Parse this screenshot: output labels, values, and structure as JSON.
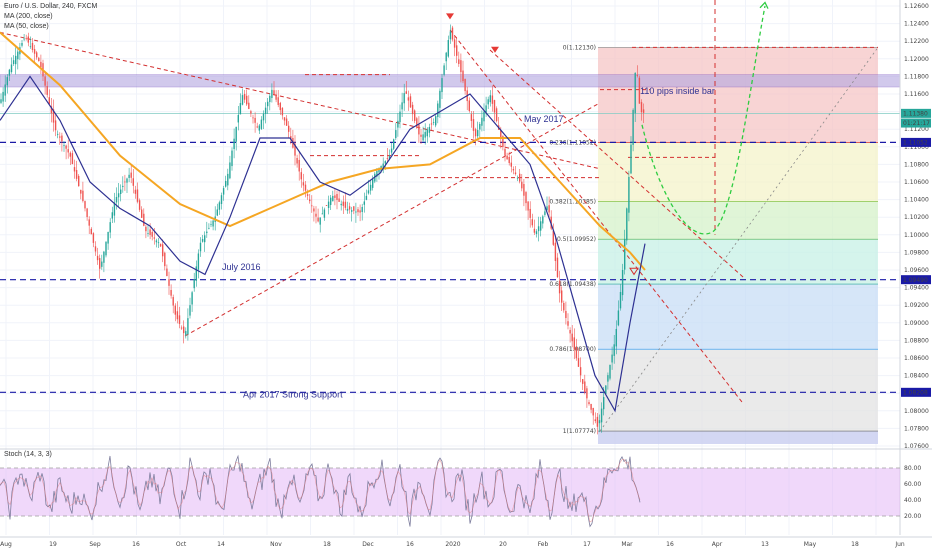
{
  "legend": {
    "symbol": "Euro / U.S. Dollar, 240, FXCM",
    "ma200": "MA (200, close)",
    "ma50": "MA (50, close)"
  },
  "stoch": {
    "label": "Stoch (14, 3, 3)",
    "levels": [
      80,
      60,
      40,
      20
    ],
    "level_labels": [
      "80.00",
      "60.00",
      "40.00",
      "20.00"
    ]
  },
  "colors": {
    "up": "#26a69a",
    "down": "#ef5350",
    "ma200": "#f5a623",
    "ma50": "#2e3192",
    "level_dashed": "#1a1aa6",
    "dashed_red": "#d32f2f",
    "projection": "#2ecc40",
    "resistance_band": "#b3a6e0",
    "stoch_fill": "#e3b8f5",
    "stoch_line": "#7e7e9e"
  },
  "chart_data": {
    "type": "line",
    "title": "Euro / U.S. Dollar, 240, FXCM",
    "ylim": [
      1.076,
      1.126
    ],
    "y_ticks": [
      1.076,
      1.078,
      1.08,
      1.082,
      1.084,
      1.086,
      1.088,
      1.09,
      1.092,
      1.094,
      1.096,
      1.098,
      1.1,
      1.102,
      1.104,
      1.106,
      1.108,
      1.11,
      1.112,
      1.114,
      1.116,
      1.118,
      1.12,
      1.122,
      1.124,
      1.126
    ],
    "y_tick_labels": [
      "1.07600",
      "1.07800",
      "1.08000",
      "1.08200",
      "1.08400",
      "1.08600",
      "1.08800",
      "1.09000",
      "1.09200",
      "1.09400",
      "1.09600",
      "1.09800",
      "1.10000",
      "1.10200",
      "1.10400",
      "1.10600",
      "1.10800",
      "1.11000",
      "1.11200",
      "1.11400",
      "1.11600",
      "1.11800",
      "1.12000",
      "1.12200",
      "1.12400",
      "1.12600"
    ],
    "x_labels": [
      "Aug",
      "19",
      "Sep",
      "16",
      "Oct",
      "14",
      "Nov",
      "18",
      "Dec",
      "16",
      "2020",
      "20",
      "Feb",
      "17",
      "Mar",
      "16",
      "Apr",
      "13",
      "May",
      "18",
      "Jun"
    ],
    "price_path": [
      [
        0,
        1.115
      ],
      [
        10,
        1.119
      ],
      [
        25,
        1.1225
      ],
      [
        40,
        1.1195
      ],
      [
        55,
        1.112
      ],
      [
        70,
        1.109
      ],
      [
        85,
        1.103
      ],
      [
        100,
        1.096
      ],
      [
        115,
        1.104
      ],
      [
        130,
        1.107
      ],
      [
        145,
        1.1005
      ],
      [
        160,
        1.099
      ],
      [
        175,
        1.091
      ],
      [
        185,
        1.0885
      ],
      [
        200,
        1.099
      ],
      [
        215,
        1.102
      ],
      [
        228,
        1.107
      ],
      [
        242,
        1.116
      ],
      [
        258,
        1.112
      ],
      [
        272,
        1.1165
      ],
      [
        288,
        1.112
      ],
      [
        302,
        1.106
      ],
      [
        318,
        1.1015
      ],
      [
        332,
        1.1045
      ],
      [
        346,
        1.103
      ],
      [
        360,
        1.1025
      ],
      [
        375,
        1.107
      ],
      [
        390,
        1.109
      ],
      [
        405,
        1.1165
      ],
      [
        420,
        1.111
      ],
      [
        435,
        1.113
      ],
      [
        450,
        1.1233
      ],
      [
        462,
        1.118
      ],
      [
        475,
        1.111
      ],
      [
        490,
        1.116
      ],
      [
        505,
        1.109
      ],
      [
        520,
        1.106
      ],
      [
        535,
        1.1
      ],
      [
        548,
        1.1035
      ],
      [
        560,
        1.093
      ],
      [
        572,
        1.088
      ],
      [
        585,
        1.082
      ],
      [
        598,
        1.078
      ],
      [
        606,
        1.083
      ],
      [
        615,
        1.088
      ],
      [
        622,
        1.095
      ],
      [
        628,
        1.105
      ],
      [
        632,
        1.112
      ],
      [
        636,
        1.12
      ],
      [
        640,
        1.114
      ],
      [
        645,
        1.1138
      ]
    ],
    "ma50_path": [
      [
        0,
        1.113
      ],
      [
        30,
        1.118
      ],
      [
        60,
        1.113
      ],
      [
        90,
        1.106
      ],
      [
        120,
        1.103
      ],
      [
        150,
        1.101
      ],
      [
        180,
        1.097
      ],
      [
        205,
        1.0955
      ],
      [
        230,
        1.102
      ],
      [
        260,
        1.111
      ],
      [
        290,
        1.111
      ],
      [
        320,
        1.106
      ],
      [
        350,
        1.1045
      ],
      [
        380,
        1.107
      ],
      [
        410,
        1.112
      ],
      [
        440,
        1.114
      ],
      [
        470,
        1.116
      ],
      [
        500,
        1.112
      ],
      [
        530,
        1.108
      ],
      [
        555,
        1.1
      ],
      [
        575,
        1.092
      ],
      [
        595,
        1.084
      ],
      [
        615,
        1.08
      ],
      [
        630,
        1.09
      ],
      [
        645,
        1.099
      ]
    ],
    "ma200_path": [
      [
        0,
        1.123
      ],
      [
        60,
        1.117
      ],
      [
        120,
        1.109
      ],
      [
        180,
        1.1035
      ],
      [
        230,
        1.101
      ],
      [
        280,
        1.1035
      ],
      [
        330,
        1.106
      ],
      [
        380,
        1.1075
      ],
      [
        430,
        1.108
      ],
      [
        480,
        1.111
      ],
      [
        520,
        1.111
      ],
      [
        560,
        1.106
      ],
      [
        600,
        1.101
      ],
      [
        630,
        1.098
      ],
      [
        645,
        1.096
      ]
    ],
    "levels": [
      {
        "price": 1.1105,
        "label": "1.11052"
      },
      {
        "price": 1.0949,
        "label": "1.09490"
      },
      {
        "price": 1.0821,
        "label": "1.08208"
      }
    ],
    "last_price": {
      "price": 1.1138,
      "label": "1.11380"
    },
    "countdown": {
      "price": 1.1127,
      "label": "01:21:17"
    },
    "fib": {
      "levels": [
        {
          "ratio": "0",
          "price": 1.1213,
          "label": "0(1.12130)"
        },
        {
          "ratio": "0.236",
          "price": 1.1105,
          "label": "0.236(1.11052)"
        },
        {
          "ratio": "0.382",
          "price": 1.1038,
          "label": "0.382(1.10385)"
        },
        {
          "ratio": "0.5",
          "price": 1.0995,
          "label": "0.5(1.09952)"
        },
        {
          "ratio": "0.618",
          "price": 1.0944,
          "label": "0.618(1.09438)"
        },
        {
          "ratio": "0.786",
          "price": 1.087,
          "label": "0.786(1.08700)"
        },
        {
          "ratio": "1",
          "price": 1.0777,
          "label": "1(1.07774)"
        }
      ]
    },
    "annotations": {
      "july2016": "July 2016",
      "may2017": "May 2017",
      "apr2017": "Apr 2017  Strong Support",
      "inside_bar": "110 pips inside bar"
    },
    "stoch_path": [
      [
        0,
        70
      ],
      [
        10,
        30
      ],
      [
        20,
        80
      ],
      [
        30,
        40
      ],
      [
        40,
        75
      ],
      [
        50,
        25
      ],
      [
        60,
        60
      ],
      [
        70,
        30
      ],
      [
        80,
        50
      ],
      [
        90,
        20
      ],
      [
        100,
        60
      ],
      [
        110,
        85
      ],
      [
        120,
        40
      ],
      [
        130,
        80
      ],
      [
        140,
        20
      ],
      [
        150,
        70
      ],
      [
        160,
        40
      ],
      [
        170,
        80
      ],
      [
        180,
        30
      ],
      [
        190,
        85
      ],
      [
        200,
        50
      ],
      [
        210,
        80
      ],
      [
        220,
        20
      ],
      [
        230,
        70
      ],
      [
        240,
        90
      ],
      [
        250,
        30
      ],
      [
        260,
        60
      ],
      [
        270,
        85
      ],
      [
        280,
        20
      ],
      [
        290,
        75
      ],
      [
        300,
        30
      ],
      [
        310,
        80
      ],
      [
        320,
        40
      ],
      [
        330,
        85
      ],
      [
        340,
        25
      ],
      [
        350,
        70
      ],
      [
        360,
        20
      ],
      [
        370,
        60
      ],
      [
        380,
        85
      ],
      [
        390,
        40
      ],
      [
        400,
        80
      ],
      [
        410,
        20
      ],
      [
        420,
        70
      ],
      [
        430,
        30
      ],
      [
        440,
        85
      ],
      [
        450,
        40
      ],
      [
        460,
        75
      ],
      [
        470,
        20
      ],
      [
        480,
        70
      ],
      [
        490,
        35
      ],
      [
        500,
        80
      ],
      [
        510,
        25
      ],
      [
        520,
        60
      ],
      [
        530,
        20
      ],
      [
        540,
        85
      ],
      [
        550,
        30
      ],
      [
        560,
        70
      ],
      [
        570,
        25
      ],
      [
        580,
        50
      ],
      [
        590,
        20
      ],
      [
        600,
        40
      ],
      [
        610,
        80
      ],
      [
        620,
        90
      ],
      [
        630,
        85
      ],
      [
        640,
        40
      ]
    ]
  }
}
